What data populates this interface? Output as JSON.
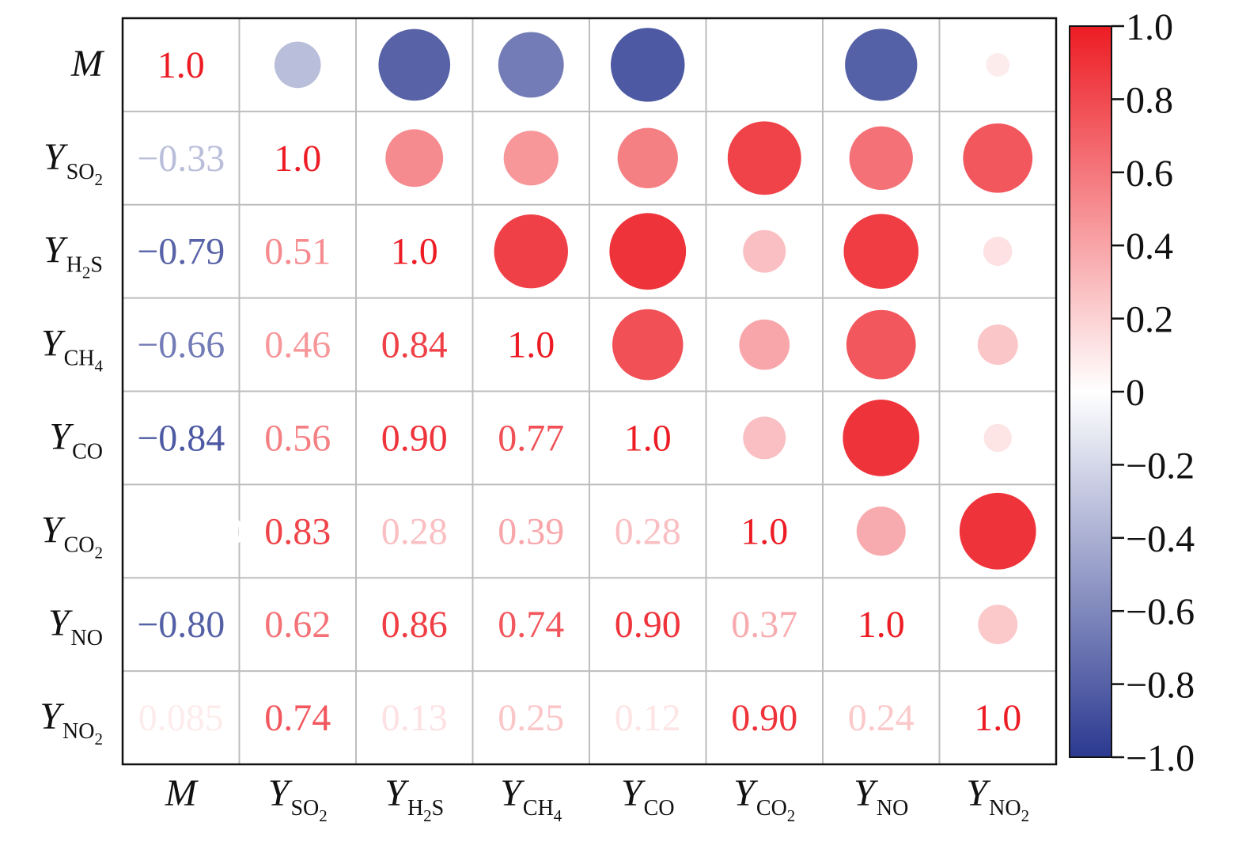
{
  "chart_data": {
    "type": "heatmap",
    "style": "correlation-matrix: circles in upper triangle, numbers in lower triangle",
    "variables": [
      {
        "main": "M",
        "sub": ""
      },
      {
        "main": "Y",
        "sub": "SO",
        "sub_digit": "2"
      },
      {
        "main": "Y",
        "sub": "H",
        "sub_digit": "2",
        "sub_tail": "S"
      },
      {
        "main": "Y",
        "sub": "CH",
        "sub_digit": "4"
      },
      {
        "main": "Y",
        "sub": "CO"
      },
      {
        "main": "Y",
        "sub": "CO",
        "sub_digit": "2"
      },
      {
        "main": "Y",
        "sub": "NO"
      },
      {
        "main": "Y",
        "sub": "NO",
        "sub_digit": "2"
      }
    ],
    "matrix": [
      [
        1.0,
        -0.33,
        -0.79,
        -0.66,
        -0.84,
        -0.002,
        -0.8,
        0.085
      ],
      [
        -0.33,
        1.0,
        0.51,
        0.46,
        0.56,
        0.83,
        0.62,
        0.74
      ],
      [
        -0.79,
        0.51,
        1.0,
        0.84,
        0.9,
        0.28,
        0.86,
        0.13
      ],
      [
        -0.66,
        0.46,
        0.84,
        1.0,
        0.77,
        0.39,
        0.74,
        0.25
      ],
      [
        -0.84,
        0.56,
        0.9,
        0.77,
        1.0,
        0.28,
        0.9,
        0.12
      ],
      [
        -0.002,
        0.83,
        0.28,
        0.39,
        0.28,
        1.0,
        0.37,
        0.9
      ],
      [
        -0.8,
        0.62,
        0.86,
        0.74,
        0.9,
        0.37,
        1.0,
        0.24
      ],
      [
        0.085,
        0.74,
        0.13,
        0.25,
        0.12,
        0.9,
        0.24,
        1.0
      ]
    ],
    "value_labels": [
      [
        "1.0",
        "",
        "",
        "",
        "",
        "",
        "",
        ""
      ],
      [
        "−0.33",
        "1.0",
        "",
        "",
        "",
        "",
        "",
        ""
      ],
      [
        "−0.79",
        "0.51",
        "1.0",
        "",
        "",
        "",
        "",
        ""
      ],
      [
        "−0.66",
        "0.46",
        "0.84",
        "1.0",
        "",
        "",
        "",
        ""
      ],
      [
        "−0.84",
        "0.56",
        "0.90",
        "0.77",
        "1.0",
        "",
        "",
        ""
      ],
      [
        "−0.0020",
        "0.83",
        "0.28",
        "0.39",
        "0.28",
        "1.0",
        "",
        ""
      ],
      [
        "−0.80",
        "0.62",
        "0.86",
        "0.74",
        "0.90",
        "0.37",
        "1.0",
        ""
      ],
      [
        "0.085",
        "0.74",
        "0.13",
        "0.25",
        "0.12",
        "0.90",
        "0.24",
        "1.0"
      ]
    ],
    "colorbar": {
      "range": [
        -1.0,
        1.0
      ],
      "ticks": [
        "1.0",
        "0.8",
        "0.6",
        "0.4",
        "0.2",
        "0",
        "−0.2",
        "−0.4",
        "−0.6",
        "−0.8",
        "−1.0"
      ],
      "tick_values": [
        1.0,
        0.8,
        0.6,
        0.4,
        0.2,
        0,
        -0.2,
        -0.4,
        -0.6,
        -0.8,
        -1.0
      ],
      "colors": {
        "negative": "#2b3990",
        "zero": "#ffffff",
        "positive": "#ed1c24"
      }
    },
    "grid": true,
    "title": "",
    "xlabel": "",
    "ylabel": ""
  }
}
